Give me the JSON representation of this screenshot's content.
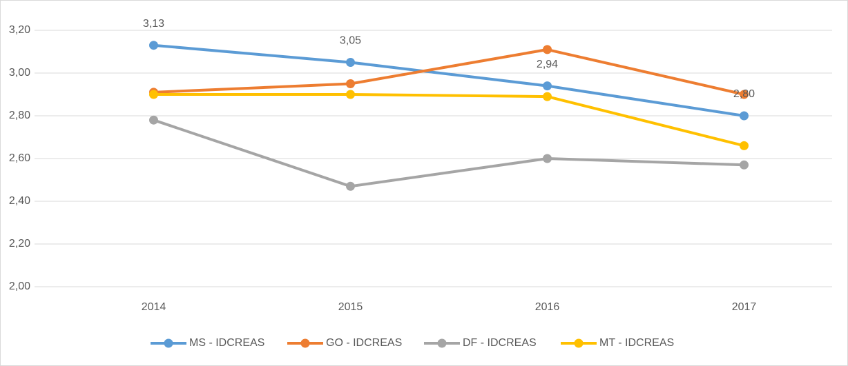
{
  "chart_data": {
    "type": "line",
    "categories": [
      "2014",
      "2015",
      "2016",
      "2017"
    ],
    "series": [
      {
        "name": "MS - IDCREAS",
        "color": "#5b9bd5",
        "values": [
          3.13,
          3.05,
          2.94,
          2.8
        ],
        "value_labels": [
          "3,13",
          "3,05",
          "2,94",
          "2,80"
        ]
      },
      {
        "name": "GO - IDCREAS",
        "color": "#ed7d31",
        "values": [
          2.91,
          2.95,
          3.11,
          2.9
        ]
      },
      {
        "name": "DF - IDCREAS",
        "color": "#a5a5a5",
        "values": [
          2.78,
          2.47,
          2.6,
          2.57
        ]
      },
      {
        "name": "MT - IDCREAS",
        "color": "#ffc000",
        "values": [
          2.9,
          2.9,
          2.89,
          2.66
        ]
      }
    ],
    "ylim": [
      2.0,
      3.2
    ],
    "yticks": [
      {
        "value": 2.0,
        "label": "2,00"
      },
      {
        "value": 2.2,
        "label": "2,20"
      },
      {
        "value": 2.4,
        "label": "2,40"
      },
      {
        "value": 2.6,
        "label": "2,60"
      },
      {
        "value": 2.8,
        "label": "2,80"
      },
      {
        "value": 3.0,
        "label": "3,00"
      },
      {
        "value": 3.2,
        "label": "3,20"
      }
    ],
    "grid": true,
    "legend": "bottom"
  }
}
